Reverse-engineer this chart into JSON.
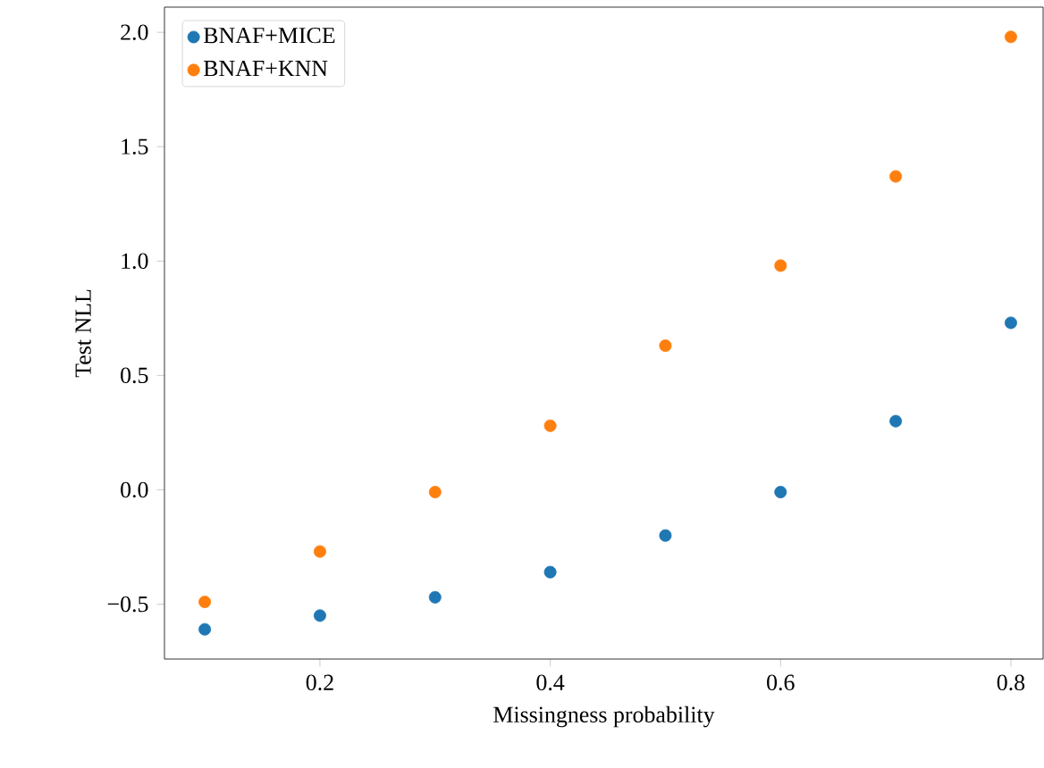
{
  "chart_data": {
    "type": "scatter",
    "xlabel": "Missingness probability",
    "ylabel": "Test NLL",
    "x": [
      0.1,
      0.2,
      0.3,
      0.4,
      0.5,
      0.6,
      0.7,
      0.8
    ],
    "series": [
      {
        "name": "BNAF+MICE",
        "color": "#1f77b4",
        "values": [
          -0.61,
          -0.55,
          -0.47,
          -0.36,
          -0.2,
          -0.01,
          0.3,
          0.73
        ]
      },
      {
        "name": "BNAF+KNN",
        "color": "#ff7f0e",
        "values": [
          -0.49,
          -0.27,
          -0.01,
          0.28,
          0.63,
          0.98,
          1.37,
          1.98
        ]
      }
    ],
    "xlim": [
      0.065,
      0.828
    ],
    "ylim": [
      -0.74,
      2.11
    ],
    "xticks": [
      0.2,
      0.4,
      0.6,
      0.8
    ],
    "yticks": [
      {
        "value": -0.5,
        "label": "−0.5"
      },
      {
        "value": 0.0,
        "label": "0.0"
      },
      0.5,
      {
        "value": 1.0,
        "label": "1.0"
      },
      1.5,
      {
        "value": 2.0,
        "label": "2.0"
      }
    ],
    "legend": "top left",
    "grid": false
  }
}
